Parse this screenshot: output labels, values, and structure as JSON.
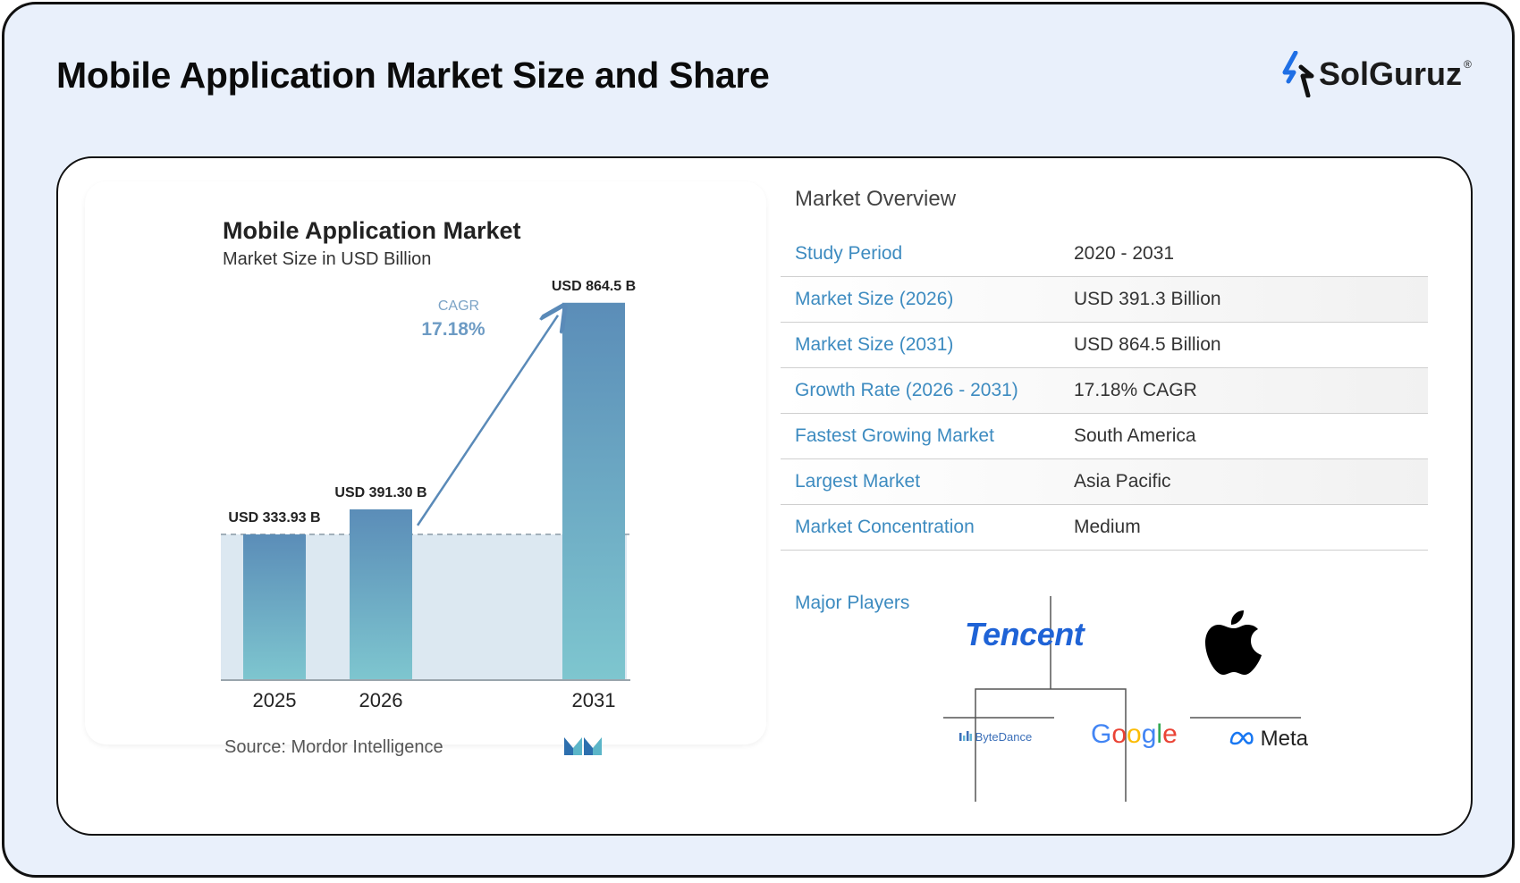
{
  "header": {
    "title": "Mobile Application Market Size and Share",
    "brand": "SolGuruz",
    "brand_mark": "®"
  },
  "chart_data": {
    "type": "bar",
    "title": "Mobile Application Market",
    "subtitle": "Market Size in USD Billion",
    "categories": [
      "2025",
      "2026",
      "2031"
    ],
    "values": [
      333.93,
      391.3,
      864.5
    ],
    "data_labels": [
      "USD 333.93 B",
      "USD 391.30 B",
      "USD 864.5 B"
    ],
    "cagr_label": "CAGR",
    "cagr_value": "17.18%",
    "ylim": [
      0,
      950
    ],
    "grid": false,
    "source": "Source: Mordor Intelligence",
    "colors": {
      "bar_top": "#5b8db8",
      "bar_bottom": "#7ec6cf",
      "arrow": "#5a8ab8",
      "band": "#dce8f1"
    }
  },
  "overview": {
    "title": "Market Overview",
    "rows": [
      {
        "label": "Study Period",
        "value": "2020 - 2031"
      },
      {
        "label": "Market Size (2026)",
        "value": "USD 391.3 Billion"
      },
      {
        "label": "Market Size (2031)",
        "value": "USD 864.5 Billion"
      },
      {
        "label": "Growth Rate (2026 - 2031)",
        "value": "17.18% CAGR"
      },
      {
        "label": "Fastest Growing Market",
        "value": "South America"
      },
      {
        "label": "Largest Market",
        "value": "Asia Pacific"
      },
      {
        "label": "Market Concentration",
        "value": "Medium"
      }
    ],
    "players_label": "Major Players",
    "players": [
      "Tencent",
      "Apple",
      "ByteDance",
      "Google",
      "Meta"
    ],
    "player_icons": {
      "apple": "apple-icon",
      "meta": "meta-infinity-icon",
      "bytedance": "bytedance-bars-icon"
    }
  }
}
